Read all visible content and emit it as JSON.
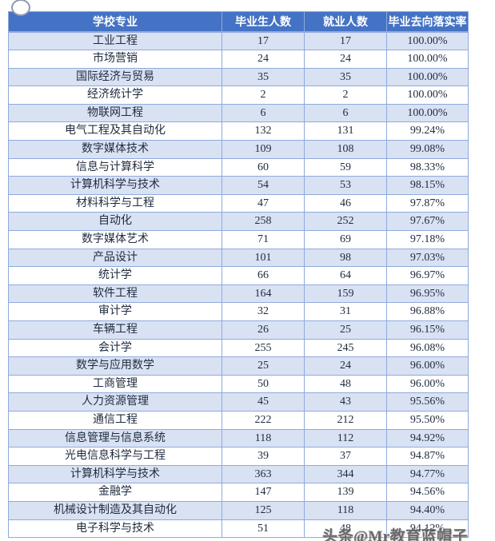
{
  "table": {
    "headers": [
      "学校专业",
      "毕业生人数",
      "就业人数",
      "毕业去向落实率"
    ],
    "rows": [
      [
        "工业工程",
        "17",
        "17",
        "100.00%"
      ],
      [
        "市场营销",
        "24",
        "24",
        "100.00%"
      ],
      [
        "国际经济与贸易",
        "35",
        "35",
        "100.00%"
      ],
      [
        "经济统计学",
        "2",
        "2",
        "100.00%"
      ],
      [
        "物联网工程",
        "6",
        "6",
        "100.00%"
      ],
      [
        "电气工程及其自动化",
        "132",
        "131",
        "99.24%"
      ],
      [
        "数字媒体技术",
        "109",
        "108",
        "99.08%"
      ],
      [
        "信息与计算科学",
        "60",
        "59",
        "98.33%"
      ],
      [
        "计算机科学与技术",
        "54",
        "53",
        "98.15%"
      ],
      [
        "材料科学与工程",
        "47",
        "46",
        "97.87%"
      ],
      [
        "自动化",
        "258",
        "252",
        "97.67%"
      ],
      [
        "数字媒体艺术",
        "71",
        "69",
        "97.18%"
      ],
      [
        "产品设计",
        "101",
        "98",
        "97.03%"
      ],
      [
        "统计学",
        "66",
        "64",
        "96.97%"
      ],
      [
        "软件工程",
        "164",
        "159",
        "96.95%"
      ],
      [
        "审计学",
        "32",
        "31",
        "96.88%"
      ],
      [
        "车辆工程",
        "26",
        "25",
        "96.15%"
      ],
      [
        "会计学",
        "255",
        "245",
        "96.08%"
      ],
      [
        "数学与应用数学",
        "25",
        "24",
        "96.00%"
      ],
      [
        "工商管理",
        "50",
        "48",
        "96.00%"
      ],
      [
        "人力资源管理",
        "45",
        "43",
        "95.56%"
      ],
      [
        "通信工程",
        "222",
        "212",
        "95.50%"
      ],
      [
        "信息管理与信息系统",
        "118",
        "112",
        "94.92%"
      ],
      [
        "光电信息科学与工程",
        "39",
        "37",
        "94.87%"
      ],
      [
        "计算机科学与技术",
        "363",
        "344",
        "94.77%"
      ],
      [
        "金融学",
        "147",
        "139",
        "94.56%"
      ],
      [
        "机械设计制造及其自动化",
        "125",
        "118",
        "94.40%"
      ],
      [
        "电子科学与技术",
        "51",
        "48",
        "94.12%"
      ]
    ]
  },
  "watermark": {
    "text": "头条@Mr教育蓝帽子"
  },
  "colors": {
    "header_bg": "#4472c4",
    "header_text": "#ffffff",
    "row_alt_bg": "#d9e2f3",
    "row_bg": "#ffffff",
    "border": "#8faadc",
    "body_text": "#1f2b3e",
    "watermark_text": "#606060"
  }
}
